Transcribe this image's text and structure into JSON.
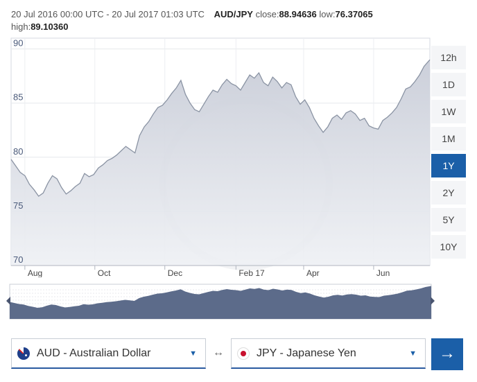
{
  "header": {
    "date_range": "20 Jul 2016 00:00 UTC - 20 Jul 2017 01:03 UTC",
    "pair": "AUD/JPY",
    "close_label": "close:",
    "close_value": "88.94636",
    "low_label": "low:",
    "low_value": "76.37065",
    "high_label": "high:",
    "high_value": "89.10360"
  },
  "range_buttons": [
    {
      "label": "12h",
      "active": false
    },
    {
      "label": "1D",
      "active": false
    },
    {
      "label": "1W",
      "active": false
    },
    {
      "label": "1M",
      "active": false
    },
    {
      "label": "1Y",
      "active": true
    },
    {
      "label": "2Y",
      "active": false
    },
    {
      "label": "5Y",
      "active": false
    },
    {
      "label": "10Y",
      "active": false
    }
  ],
  "converter": {
    "from_currency": "AUD - Australian Dollar",
    "to_currency": "JPY - Japanese Yen",
    "swap_symbol": "↔",
    "go_symbol": "→"
  },
  "colors": {
    "accent": "#1b5fa8",
    "line": "#8a93a3",
    "nav_fill": "#5c6b8a"
  },
  "chart_data": {
    "type": "area",
    "xlabel": "",
    "ylabel": "",
    "ylim": [
      70,
      91
    ],
    "yticks": [
      70,
      75,
      80,
      85,
      90
    ],
    "x_tick_labels": [
      "Aug",
      "Oct",
      "Dec",
      "Feb 17",
      "Apr",
      "Jun"
    ],
    "x_tick_dates": [
      "2016-08-01",
      "2016-10-01",
      "2016-12-01",
      "2017-02-01",
      "2017-04-01",
      "2017-06-01"
    ],
    "x_range": [
      "2016-07-20",
      "2017-07-20"
    ],
    "grid": true,
    "series": [
      {
        "points": [
          [
            "2016-07-20",
            79.8
          ],
          [
            "2016-07-24",
            79.2
          ],
          [
            "2016-07-28",
            78.6
          ],
          [
            "2016-08-01",
            78.3
          ],
          [
            "2016-08-05",
            77.5
          ],
          [
            "2016-08-09",
            77.0
          ],
          [
            "2016-08-13",
            76.4
          ],
          [
            "2016-08-17",
            76.7
          ],
          [
            "2016-08-21",
            77.6
          ],
          [
            "2016-08-25",
            78.3
          ],
          [
            "2016-08-29",
            78.0
          ],
          [
            "2016-09-02",
            77.2
          ],
          [
            "2016-09-06",
            76.6
          ],
          [
            "2016-09-10",
            76.9
          ],
          [
            "2016-09-14",
            77.3
          ],
          [
            "2016-09-18",
            77.6
          ],
          [
            "2016-09-22",
            78.5
          ],
          [
            "2016-09-26",
            78.2
          ],
          [
            "2016-09-30",
            78.4
          ],
          [
            "2016-10-04",
            79.0
          ],
          [
            "2016-10-08",
            79.3
          ],
          [
            "2016-10-12",
            79.7
          ],
          [
            "2016-10-16",
            79.9
          ],
          [
            "2016-10-20",
            80.2
          ],
          [
            "2016-10-24",
            80.6
          ],
          [
            "2016-10-28",
            81.0
          ],
          [
            "2016-11-01",
            80.7
          ],
          [
            "2016-11-05",
            80.4
          ],
          [
            "2016-11-09",
            82.0
          ],
          [
            "2016-11-13",
            82.8
          ],
          [
            "2016-11-17",
            83.3
          ],
          [
            "2016-11-21",
            84.0
          ],
          [
            "2016-11-25",
            84.6
          ],
          [
            "2016-11-29",
            84.8
          ],
          [
            "2016-12-03",
            85.3
          ],
          [
            "2016-12-07",
            85.9
          ],
          [
            "2016-12-11",
            86.4
          ],
          [
            "2016-12-15",
            87.1
          ],
          [
            "2016-12-19",
            85.8
          ],
          [
            "2016-12-23",
            85.0
          ],
          [
            "2016-12-27",
            84.4
          ],
          [
            "2016-12-31",
            84.2
          ],
          [
            "2017-01-04",
            84.9
          ],
          [
            "2017-01-08",
            85.6
          ],
          [
            "2017-01-12",
            86.2
          ],
          [
            "2017-01-16",
            86.0
          ],
          [
            "2017-01-20",
            86.7
          ],
          [
            "2017-01-24",
            87.2
          ],
          [
            "2017-01-28",
            86.8
          ],
          [
            "2017-02-01",
            86.6
          ],
          [
            "2017-02-05",
            86.2
          ],
          [
            "2017-02-09",
            86.9
          ],
          [
            "2017-02-13",
            87.6
          ],
          [
            "2017-02-17",
            87.3
          ],
          [
            "2017-02-21",
            87.8
          ],
          [
            "2017-02-25",
            86.9
          ],
          [
            "2017-03-01",
            86.6
          ],
          [
            "2017-03-05",
            87.4
          ],
          [
            "2017-03-09",
            87.0
          ],
          [
            "2017-03-13",
            86.4
          ],
          [
            "2017-03-17",
            86.9
          ],
          [
            "2017-03-21",
            86.7
          ],
          [
            "2017-03-25",
            85.6
          ],
          [
            "2017-03-29",
            84.9
          ],
          [
            "2017-04-02",
            85.3
          ],
          [
            "2017-04-06",
            84.6
          ],
          [
            "2017-04-10",
            83.6
          ],
          [
            "2017-04-14",
            82.9
          ],
          [
            "2017-04-18",
            82.3
          ],
          [
            "2017-04-22",
            82.8
          ],
          [
            "2017-04-26",
            83.6
          ],
          [
            "2017-04-30",
            83.9
          ],
          [
            "2017-05-04",
            83.5
          ],
          [
            "2017-05-08",
            84.1
          ],
          [
            "2017-05-12",
            84.3
          ],
          [
            "2017-05-16",
            84.0
          ],
          [
            "2017-05-20",
            83.4
          ],
          [
            "2017-05-24",
            83.6
          ],
          [
            "2017-05-28",
            82.9
          ],
          [
            "2017-06-01",
            82.7
          ],
          [
            "2017-06-05",
            82.6
          ],
          [
            "2017-06-09",
            83.4
          ],
          [
            "2017-06-13",
            83.7
          ],
          [
            "2017-06-17",
            84.1
          ],
          [
            "2017-06-21",
            84.6
          ],
          [
            "2017-06-25",
            85.4
          ],
          [
            "2017-06-29",
            86.3
          ],
          [
            "2017-07-03",
            86.5
          ],
          [
            "2017-07-07",
            87.0
          ],
          [
            "2017-07-11",
            87.6
          ],
          [
            "2017-07-15",
            88.4
          ],
          [
            "2017-07-20",
            89.0
          ]
        ]
      }
    ]
  }
}
